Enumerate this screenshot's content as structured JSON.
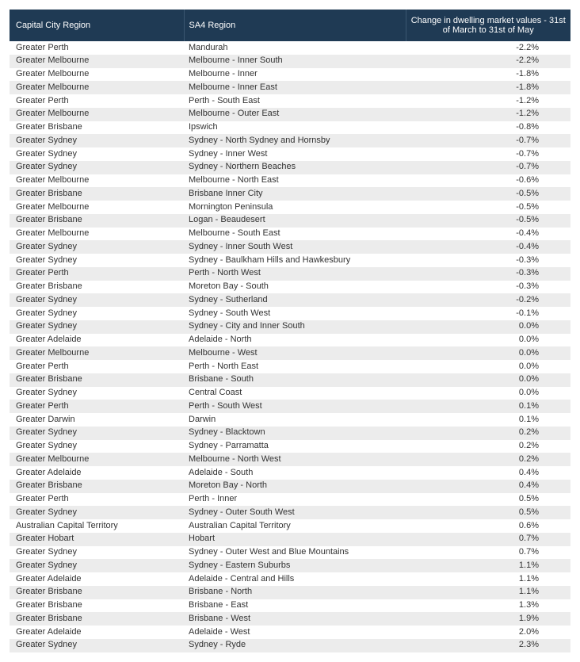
{
  "table": {
    "header_bg": "#1f3a54",
    "header_fg": "#ffffff",
    "row_even_bg": "#ffffff",
    "row_odd_bg": "#ececec",
    "text_color": "#333333",
    "columns": [
      {
        "label": "Capital City Region"
      },
      {
        "label": "SA4 Region"
      },
      {
        "label": "Change in dwelling market values - 31st of March to 31st of May"
      }
    ],
    "rows": [
      {
        "region": "Greater Perth",
        "sa4": "Mandurah",
        "change": "-2.2%"
      },
      {
        "region": "Greater Melbourne",
        "sa4": "Melbourne - Inner South",
        "change": "-2.2%"
      },
      {
        "region": "Greater Melbourne",
        "sa4": "Melbourne - Inner",
        "change": "-1.8%"
      },
      {
        "region": "Greater Melbourne",
        "sa4": "Melbourne - Inner East",
        "change": "-1.8%"
      },
      {
        "region": "Greater Perth",
        "sa4": "Perth - South East",
        "change": "-1.2%"
      },
      {
        "region": "Greater Melbourne",
        "sa4": "Melbourne - Outer East",
        "change": "-1.2%"
      },
      {
        "region": "Greater Brisbane",
        "sa4": "Ipswich",
        "change": "-0.8%"
      },
      {
        "region": "Greater Sydney",
        "sa4": "Sydney - North Sydney and Hornsby",
        "change": "-0.7%"
      },
      {
        "region": "Greater Sydney",
        "sa4": "Sydney - Inner West",
        "change": "-0.7%"
      },
      {
        "region": "Greater Sydney",
        "sa4": "Sydney - Northern Beaches",
        "change": "-0.7%"
      },
      {
        "region": "Greater Melbourne",
        "sa4": "Melbourne - North East",
        "change": "-0.6%"
      },
      {
        "region": "Greater Brisbane",
        "sa4": "Brisbane Inner City",
        "change": "-0.5%"
      },
      {
        "region": "Greater Melbourne",
        "sa4": "Mornington Peninsula",
        "change": "-0.5%"
      },
      {
        "region": "Greater Brisbane",
        "sa4": "Logan - Beaudesert",
        "change": "-0.5%"
      },
      {
        "region": "Greater Melbourne",
        "sa4": "Melbourne - South East",
        "change": "-0.4%"
      },
      {
        "region": "Greater Sydney",
        "sa4": "Sydney - Inner South West",
        "change": "-0.4%"
      },
      {
        "region": "Greater Sydney",
        "sa4": "Sydney - Baulkham Hills and Hawkesbury",
        "change": "-0.3%"
      },
      {
        "region": "Greater Perth",
        "sa4": "Perth - North West",
        "change": "-0.3%"
      },
      {
        "region": "Greater Brisbane",
        "sa4": "Moreton Bay - South",
        "change": "-0.3%"
      },
      {
        "region": "Greater Sydney",
        "sa4": "Sydney - Sutherland",
        "change": "-0.2%"
      },
      {
        "region": "Greater Sydney",
        "sa4": "Sydney - South West",
        "change": "-0.1%"
      },
      {
        "region": "Greater Sydney",
        "sa4": "Sydney - City and Inner South",
        "change": "0.0%"
      },
      {
        "region": "Greater Adelaide",
        "sa4": "Adelaide - North",
        "change": "0.0%"
      },
      {
        "region": "Greater Melbourne",
        "sa4": "Melbourne - West",
        "change": "0.0%"
      },
      {
        "region": "Greater Perth",
        "sa4": "Perth - North East",
        "change": "0.0%"
      },
      {
        "region": "Greater Brisbane",
        "sa4": "Brisbane - South",
        "change": "0.0%"
      },
      {
        "region": "Greater Sydney",
        "sa4": "Central Coast",
        "change": "0.0%"
      },
      {
        "region": "Greater Perth",
        "sa4": "Perth - South West",
        "change": "0.1%"
      },
      {
        "region": "Greater Darwin",
        "sa4": "Darwin",
        "change": "0.1%"
      },
      {
        "region": "Greater Sydney",
        "sa4": "Sydney - Blacktown",
        "change": "0.2%"
      },
      {
        "region": "Greater Sydney",
        "sa4": "Sydney - Parramatta",
        "change": "0.2%"
      },
      {
        "region": "Greater Melbourne",
        "sa4": "Melbourne - North West",
        "change": "0.2%"
      },
      {
        "region": "Greater Adelaide",
        "sa4": "Adelaide - South",
        "change": "0.4%"
      },
      {
        "region": "Greater Brisbane",
        "sa4": "Moreton Bay - North",
        "change": "0.4%"
      },
      {
        "region": "Greater Perth",
        "sa4": "Perth - Inner",
        "change": "0.5%"
      },
      {
        "region": "Greater Sydney",
        "sa4": "Sydney - Outer South West",
        "change": "0.5%"
      },
      {
        "region": "Australian Capital Territory",
        "sa4": "Australian Capital Territory",
        "change": "0.6%"
      },
      {
        "region": "Greater Hobart",
        "sa4": "Hobart",
        "change": "0.7%"
      },
      {
        "region": "Greater Sydney",
        "sa4": "Sydney - Outer West and Blue Mountains",
        "change": "0.7%"
      },
      {
        "region": "Greater Sydney",
        "sa4": "Sydney - Eastern Suburbs",
        "change": "1.1%"
      },
      {
        "region": "Greater Adelaide",
        "sa4": "Adelaide - Central and Hills",
        "change": "1.1%"
      },
      {
        "region": "Greater Brisbane",
        "sa4": "Brisbane - North",
        "change": "1.1%"
      },
      {
        "region": "Greater Brisbane",
        "sa4": "Brisbane - East",
        "change": "1.3%"
      },
      {
        "region": "Greater Brisbane",
        "sa4": "Brisbane - West",
        "change": "1.9%"
      },
      {
        "region": "Greater Adelaide",
        "sa4": "Adelaide - West",
        "change": "2.0%"
      },
      {
        "region": "Greater Sydney",
        "sa4": "Sydney - Ryde",
        "change": "2.3%"
      }
    ]
  }
}
